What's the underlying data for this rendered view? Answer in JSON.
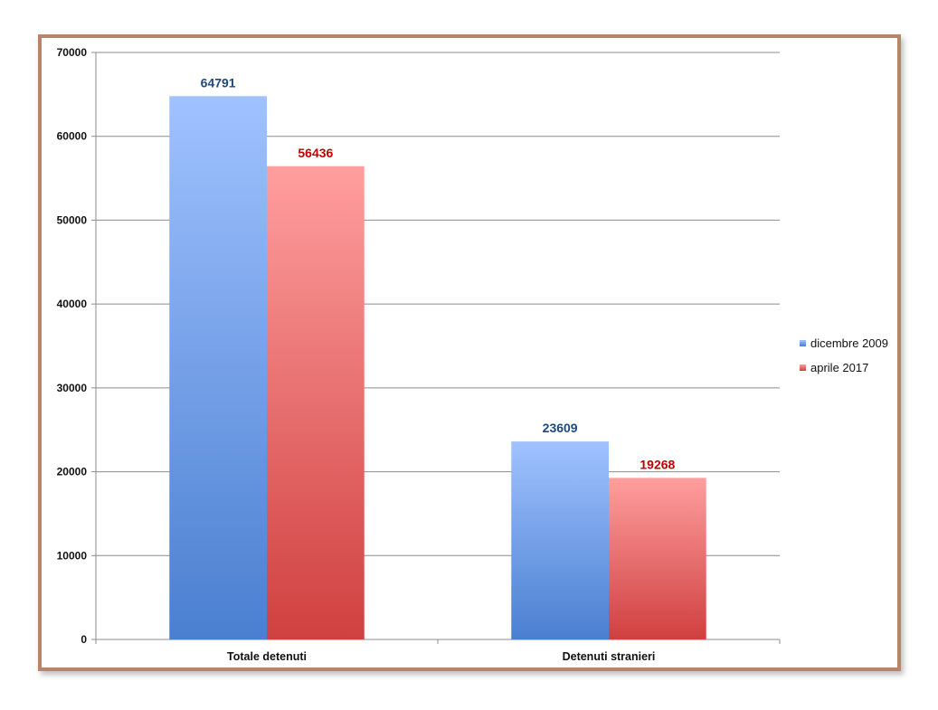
{
  "chart_data": {
    "type": "bar",
    "categories": [
      "Totale detenuti",
      "Detenuti stranieri"
    ],
    "series": [
      {
        "name": "dicembre 2009",
        "values": [
          64791,
          23609
        ],
        "color": "#4a7fd0",
        "color_light": "#a0c2ff",
        "label_color": "#1f497d"
      },
      {
        "name": "aprile 2017",
        "values": [
          56436,
          19268
        ],
        "color": "#d04040",
        "color_light": "#ff9e9e",
        "label_color": "#c00000"
      }
    ],
    "ylim": [
      0,
      70000
    ],
    "yticks": [
      0,
      10000,
      20000,
      30000,
      40000,
      50000,
      60000,
      70000
    ],
    "grid": true,
    "legend_position": "right"
  }
}
